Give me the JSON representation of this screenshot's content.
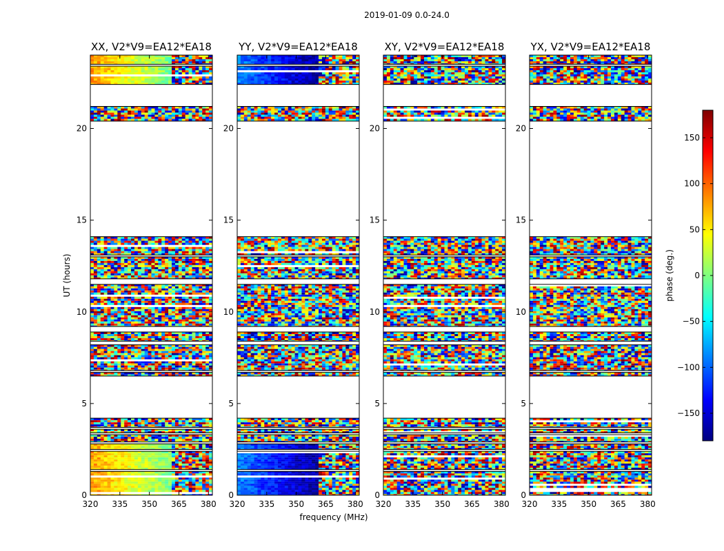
{
  "chart_data": {
    "type": "heatmap",
    "suptitle": "2019-01-09 0.0-24.0",
    "xlabel": "frequency (MHz)",
    "ylabel": "UT (hours)",
    "xlim": [
      320,
      382
    ],
    "ylim": [
      0,
      24
    ],
    "xticks": [
      320,
      335,
      350,
      365,
      380
    ],
    "yticks": [
      0,
      5,
      10,
      15,
      20
    ],
    "colorbar": {
      "label": "phase (deg.)",
      "range": [
        -180,
        180
      ],
      "ticks": [
        150,
        100,
        50,
        0,
        -50,
        -100,
        -150
      ],
      "tick_labels": [
        "150",
        "100",
        "50",
        "0",
        "−50",
        "−100",
        "−150"
      ],
      "colormap": [
        "#00007f",
        "#0000ff",
        "#007fff",
        "#00ffff",
        "#7fff7f",
        "#ffff00",
        "#ff7f00",
        "#ff0000",
        "#7f0000"
      ]
    },
    "panels": [
      {
        "title": "XX, V2*V9=EA12*EA18",
        "pol": "XX"
      },
      {
        "title": "YY, V2*V9=EA12*EA18",
        "pol": "YY"
      },
      {
        "title": "XY, V2*V9=EA12*EA18",
        "pol": "XY"
      },
      {
        "title": "YX, V2*V9=EA12*EA18",
        "pol": "YX"
      }
    ],
    "data_segments_hours": [
      {
        "start": 0.0,
        "end": 1.3
      },
      {
        "start": 1.4,
        "end": 2.4
      },
      {
        "start": 2.5,
        "end": 2.8
      },
      {
        "start": 2.9,
        "end": 3.3
      },
      {
        "start": 3.4,
        "end": 3.6
      },
      {
        "start": 3.7,
        "end": 4.2
      },
      {
        "start": 6.5,
        "end": 6.7
      },
      {
        "start": 6.8,
        "end": 8.2
      },
      {
        "start": 8.4,
        "end": 8.9
      },
      {
        "start": 9.2,
        "end": 11.5
      },
      {
        "start": 11.8,
        "end": 13.0
      },
      {
        "start": 13.1,
        "end": 14.1
      },
      {
        "start": 20.4,
        "end": 21.2
      },
      {
        "start": 22.4,
        "end": 23.4
      },
      {
        "start": 23.5,
        "end": 24.0
      }
    ]
  }
}
